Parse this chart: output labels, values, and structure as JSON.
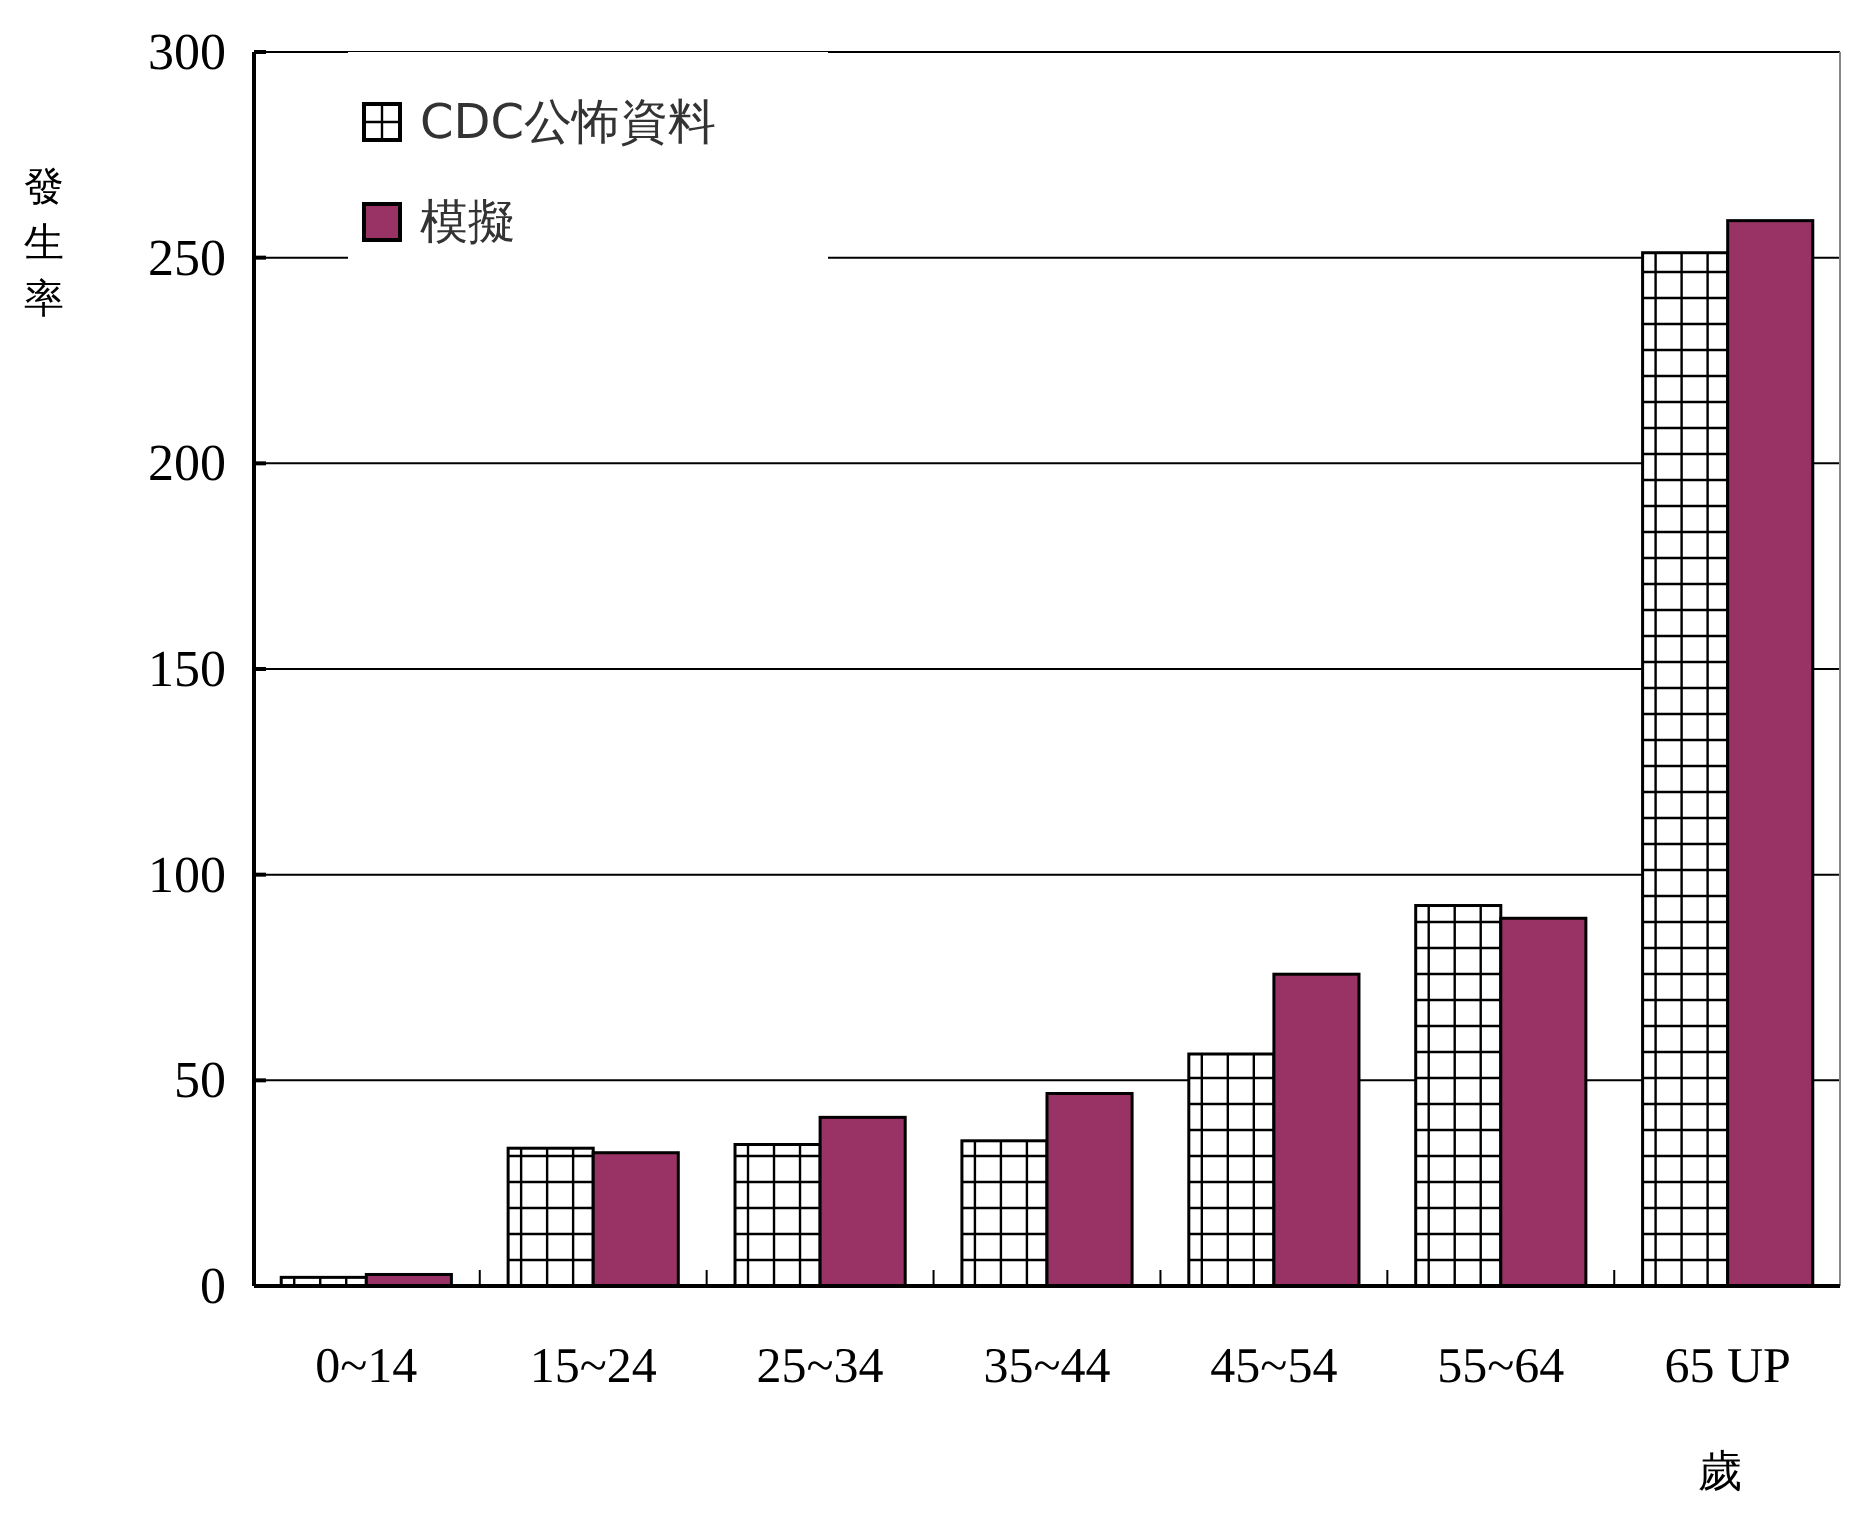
{
  "chart_data": {
    "type": "bar",
    "xlabel": "歲",
    "ylabel": "發生率",
    "categories": [
      "0~14",
      "15~24",
      "25~34",
      "35~44",
      "45~54",
      "55~64",
      "65 UP"
    ],
    "series": [
      {
        "name": "CDC公怖資料",
        "color": "#ffffff",
        "values": [
          2.1,
          33.5,
          34.4,
          35.3,
          56.4,
          92.5,
          251.2
        ]
      },
      {
        "name": "模擬",
        "color": "#993366",
        "values": [
          2.8,
          32.4,
          41,
          46.8,
          75.8,
          89.4,
          259
        ]
      }
    ],
    "ylim": [
      0,
      300
    ],
    "yticks": [
      0,
      50,
      100,
      150,
      200,
      250,
      300
    ],
    "grid": "y",
    "legend": "top left"
  }
}
